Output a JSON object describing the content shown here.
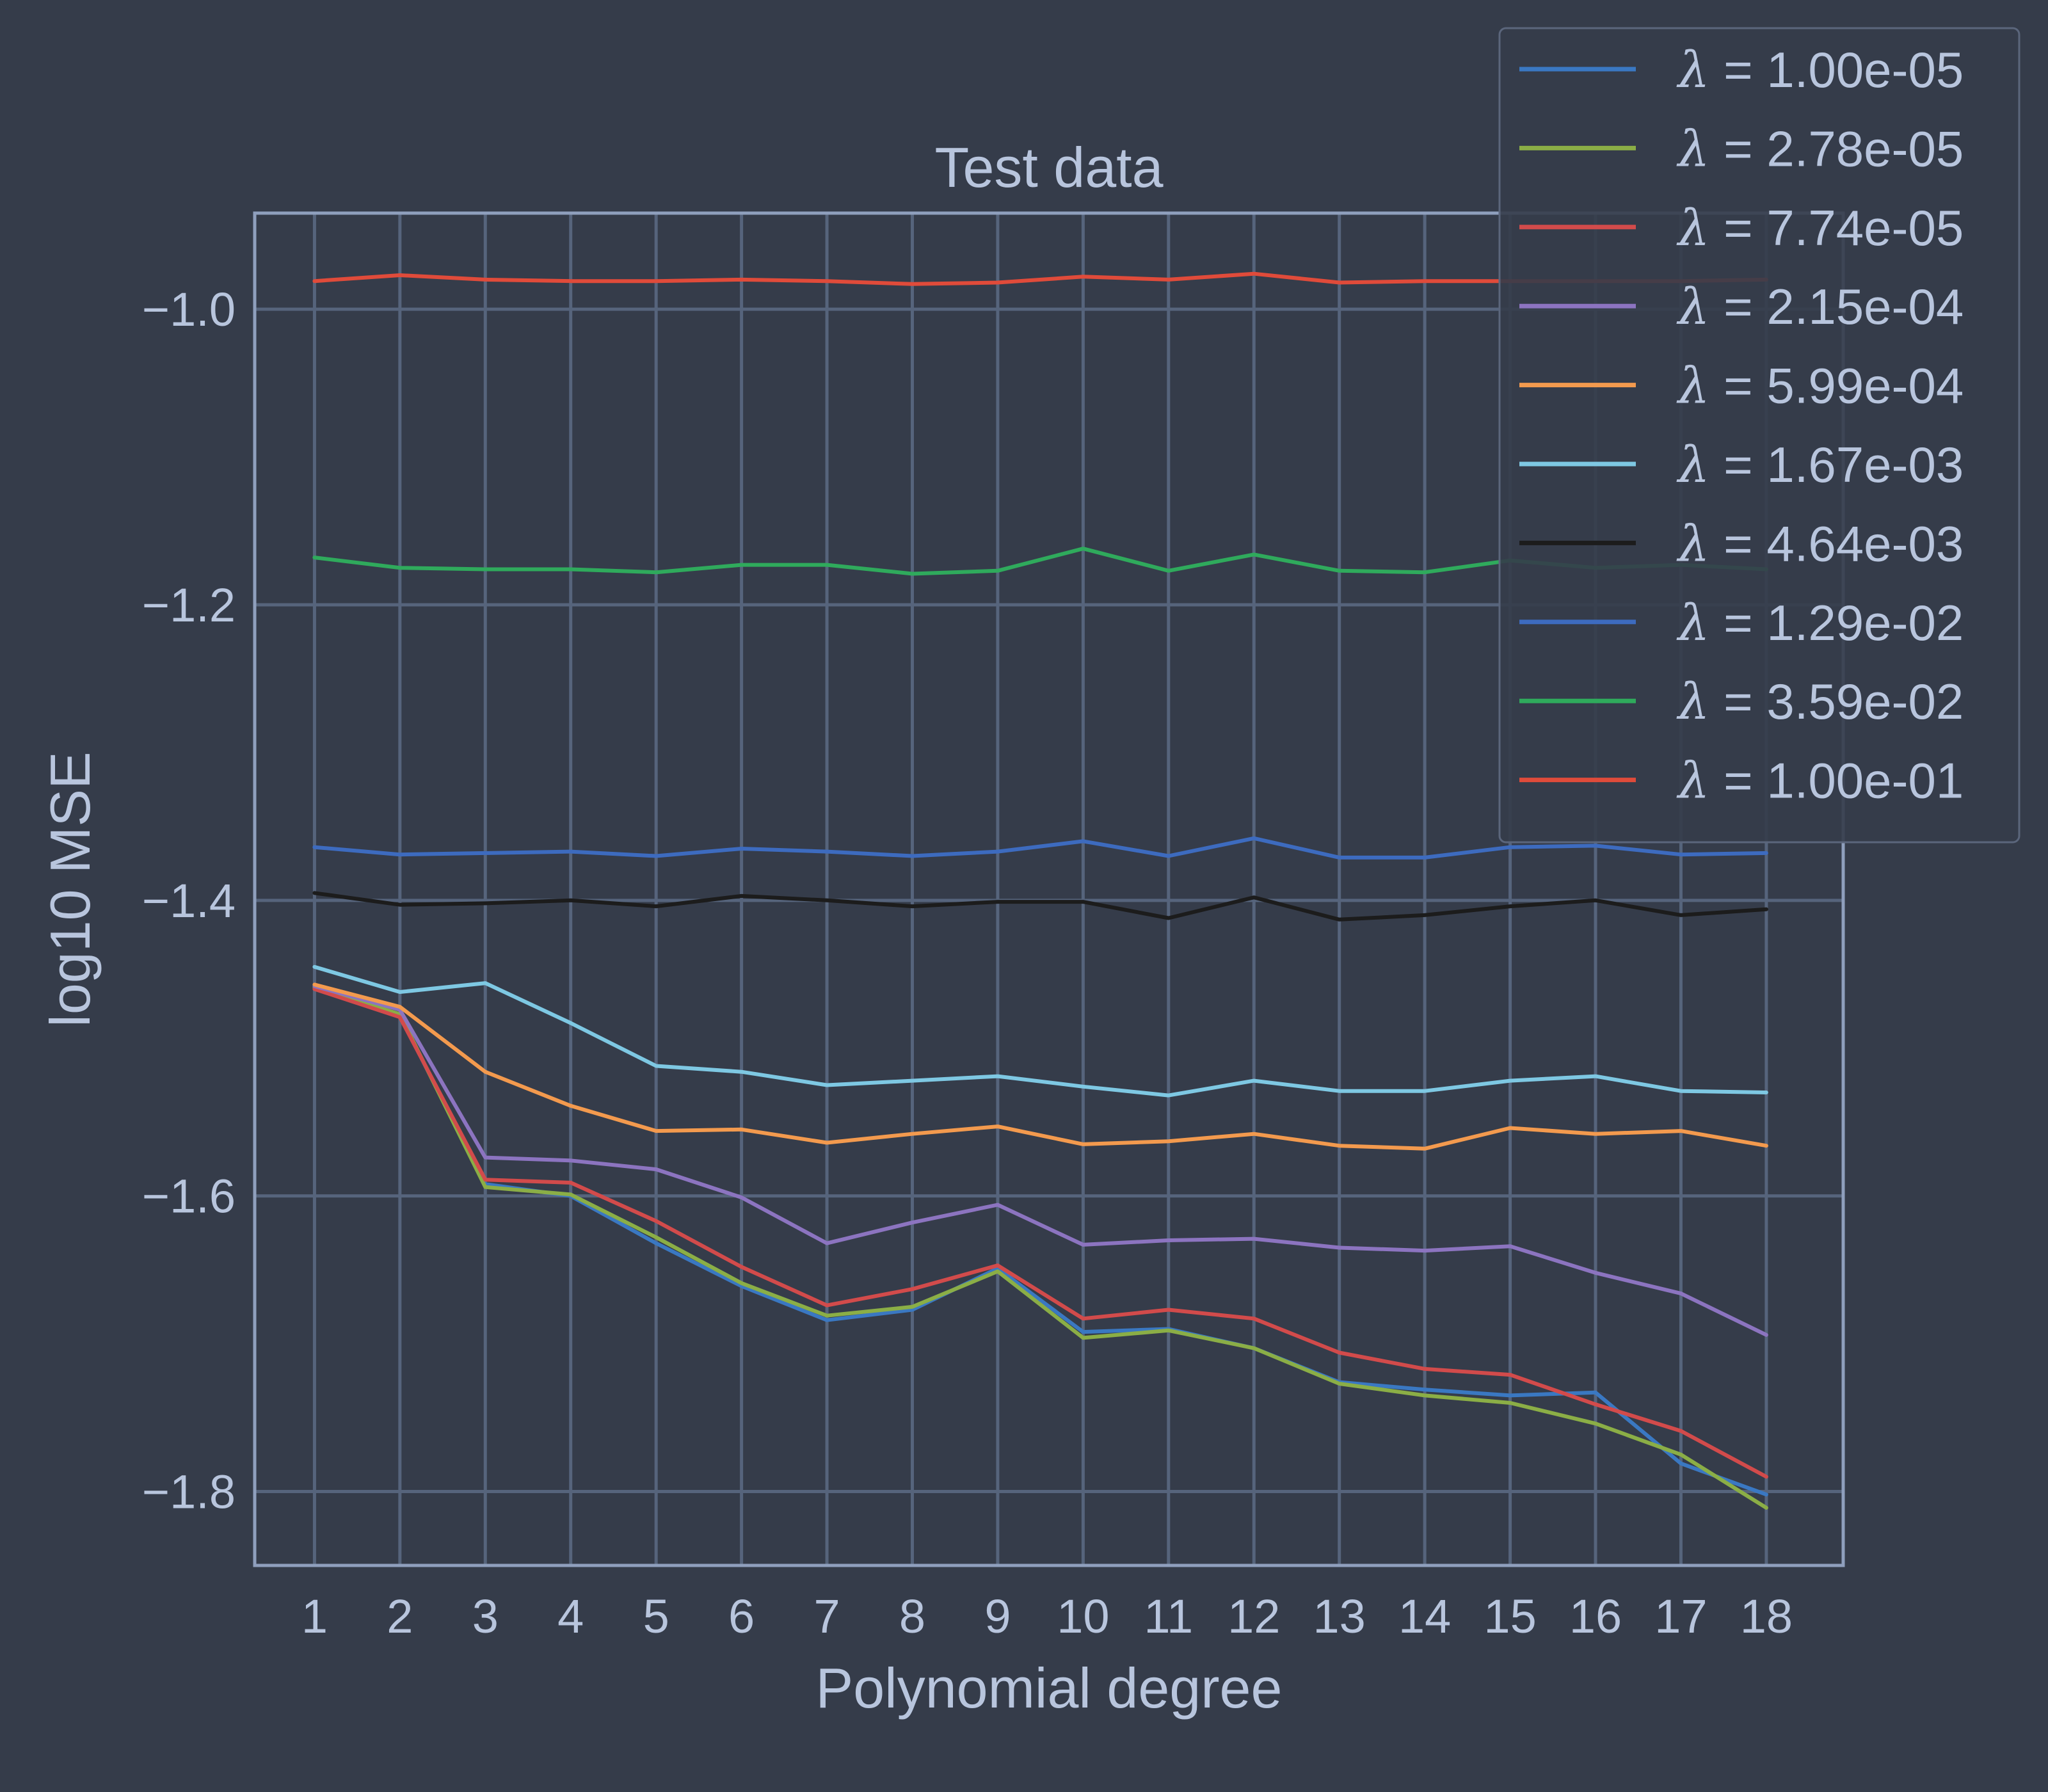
{
  "chart_data": {
    "type": "line",
    "title": "Test data",
    "xlabel": "Polynomial degree",
    "ylabel": "log10 MSE",
    "x": [
      1,
      2,
      3,
      4,
      5,
      6,
      7,
      8,
      9,
      10,
      11,
      12,
      13,
      14,
      15,
      16,
      17,
      18
    ],
    "xlim": [
      0.3,
      18.9
    ],
    "ylim": [
      -1.85,
      -0.935
    ],
    "yticks": [
      -1.8,
      -1.6,
      -1.4,
      -1.2,
      -1.0
    ],
    "ytick_labels": [
      "−1.8",
      "−1.6",
      "−1.4",
      "−1.2",
      "−1.0"
    ],
    "grid": true,
    "legend_position": "top-right",
    "legend_symbol": "λ",
    "series": [
      {
        "name": "= 1.00e-05",
        "color": "#3a78c2",
        "values": [
          -1.458,
          -1.478,
          -1.592,
          -1.6,
          -1.632,
          -1.661,
          -1.684,
          -1.677,
          -1.649,
          -1.692,
          -1.69,
          -1.703,
          -1.726,
          -1.731,
          -1.735,
          -1.733,
          -1.781,
          -1.802
        ]
      },
      {
        "name": "= 2.78e-05",
        "color": "#8bae46",
        "values": [
          -1.459,
          -1.477,
          -1.594,
          -1.599,
          -1.628,
          -1.659,
          -1.681,
          -1.675,
          -1.651,
          -1.696,
          -1.691,
          -1.703,
          -1.727,
          -1.735,
          -1.74,
          -1.754,
          -1.775,
          -1.811
        ]
      },
      {
        "name": "= 7.74e-05",
        "color": "#d24b4b",
        "values": [
          -1.46,
          -1.479,
          -1.589,
          -1.591,
          -1.617,
          -1.648,
          -1.674,
          -1.663,
          -1.647,
          -1.683,
          -1.677,
          -1.683,
          -1.706,
          -1.717,
          -1.721,
          -1.741,
          -1.759,
          -1.79
        ]
      },
      {
        "name": "= 2.15e-04",
        "color": "#8c74c0",
        "values": [
          -1.458,
          -1.474,
          -1.574,
          -1.576,
          -1.582,
          -1.601,
          -1.632,
          -1.618,
          -1.606,
          -1.633,
          -1.63,
          -1.629,
          -1.635,
          -1.637,
          -1.634,
          -1.652,
          -1.666,
          -1.694
        ]
      },
      {
        "name": "= 5.99e-04",
        "color": "#f39a4e",
        "values": [
          -1.457,
          -1.472,
          -1.516,
          -1.539,
          -1.556,
          -1.555,
          -1.564,
          -1.558,
          -1.553,
          -1.565,
          -1.563,
          -1.558,
          -1.566,
          -1.568,
          -1.554,
          -1.558,
          -1.556,
          -1.566
        ]
      },
      {
        "name": "= 1.67e-03",
        "color": "#7ec8e3",
        "values": [
          -1.445,
          -1.462,
          -1.456,
          -1.483,
          -1.512,
          -1.516,
          -1.525,
          -1.522,
          -1.519,
          -1.526,
          -1.532,
          -1.522,
          -1.529,
          -1.529,
          -1.522,
          -1.519,
          -1.529,
          -1.53
        ]
      },
      {
        "name": "= 4.64e-03",
        "color": "#1c1c1c",
        "values": [
          -1.395,
          -1.403,
          -1.402,
          -1.4,
          -1.404,
          -1.397,
          -1.4,
          -1.404,
          -1.401,
          -1.401,
          -1.412,
          -1.398,
          -1.413,
          -1.41,
          -1.404,
          -1.4,
          -1.41,
          -1.406
        ]
      },
      {
        "name": "= 1.29e-02",
        "color": "#3d6bbf",
        "values": [
          -1.364,
          -1.369,
          -1.368,
          -1.367,
          -1.37,
          -1.365,
          -1.367,
          -1.37,
          -1.367,
          -1.36,
          -1.37,
          -1.358,
          -1.371,
          -1.371,
          -1.364,
          -1.363,
          -1.369,
          -1.368
        ]
      },
      {
        "name": "= 3.59e-02",
        "color": "#2faa5c",
        "values": [
          -1.168,
          -1.175,
          -1.176,
          -1.176,
          -1.178,
          -1.173,
          -1.173,
          -1.179,
          -1.177,
          -1.162,
          -1.177,
          -1.166,
          -1.177,
          -1.178,
          -1.17,
          -1.175,
          -1.173,
          -1.176
        ]
      },
      {
        "name": "= 1.00e-01",
        "color": "#e04b3a",
        "values": [
          -0.981,
          -0.977,
          -0.98,
          -0.981,
          -0.981,
          -0.98,
          -0.981,
          -0.983,
          -0.982,
          -0.978,
          -0.98,
          -0.976,
          -0.982,
          -0.981,
          -0.981,
          -0.981,
          -0.981,
          -0.98
        ]
      }
    ]
  },
  "colors": {
    "background": "#353c4a",
    "grid": "#56647c",
    "frame": "#8f9fbd",
    "text": "#b8c5dd",
    "legend_bg": "#353c4a",
    "legend_border": "#5b667c"
  }
}
